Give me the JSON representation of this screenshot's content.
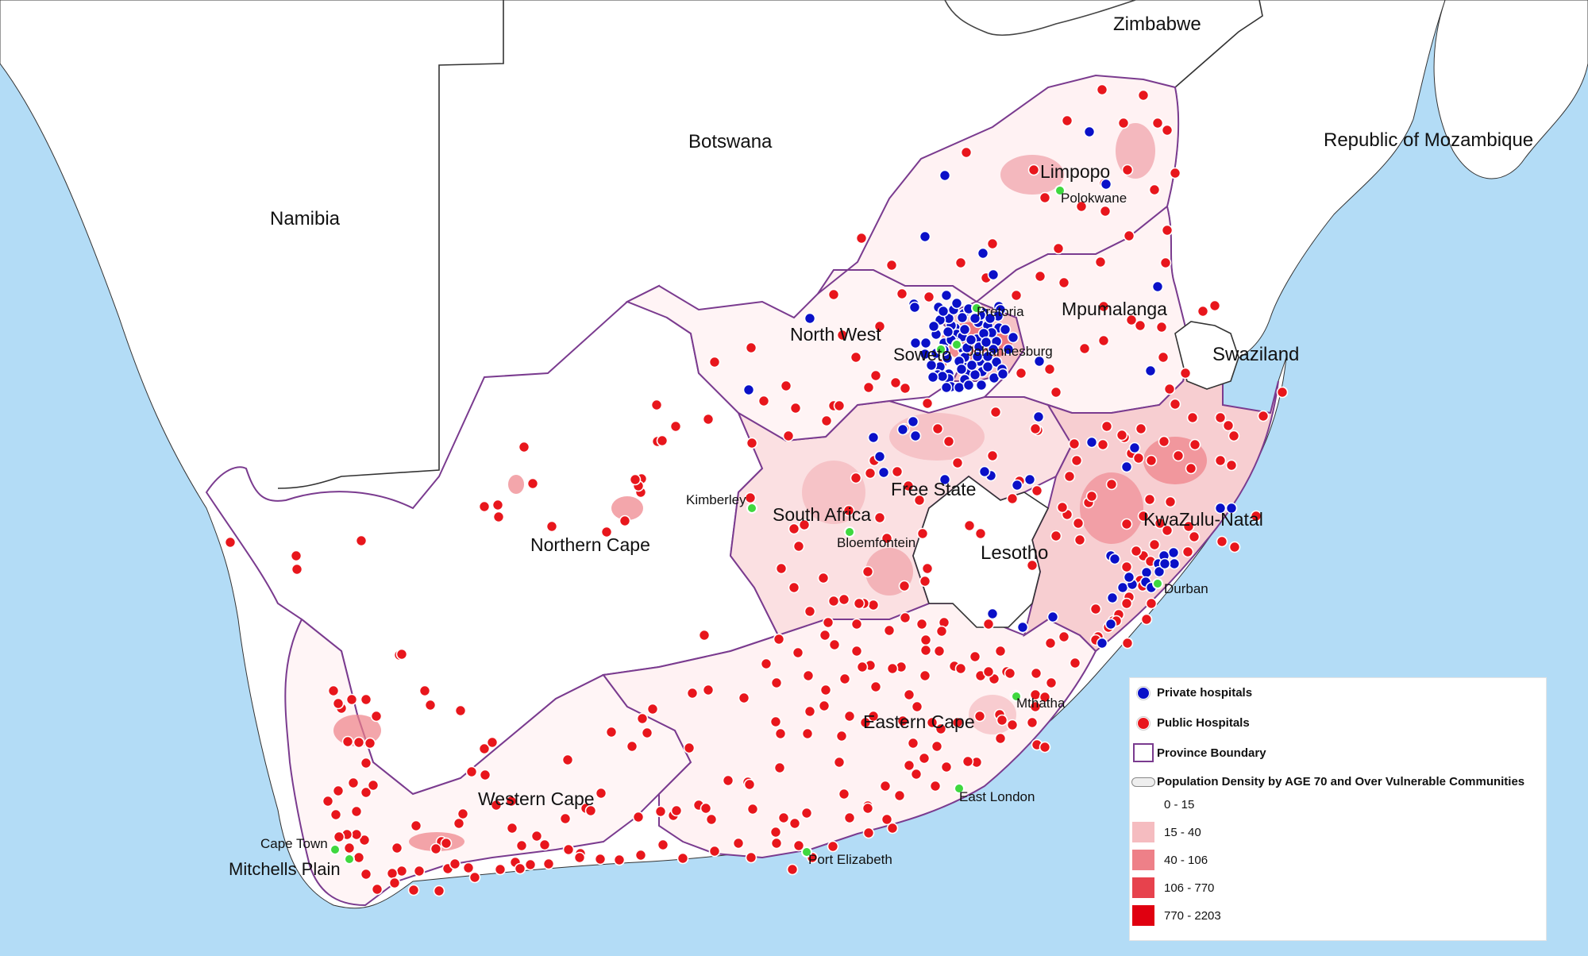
{
  "colors": {
    "ocean": "#b3dcf6",
    "land": "#ffffff",
    "province_boundary": "#7a3b8f",
    "private_hospital": "#0a10c8",
    "public_hospital": "#e8161c",
    "city_marker": "#3fd83f"
  },
  "countries": [
    {
      "name": "Namibia"
    },
    {
      "name": "Botswana"
    },
    {
      "name": "Zimbabwe"
    },
    {
      "name": "Republic of Mozambique"
    },
    {
      "name": "Swaziland"
    },
    {
      "name": "Lesotho"
    },
    {
      "name": "South Africa"
    }
  ],
  "provinces": [
    {
      "name": "Limpopo"
    },
    {
      "name": "Mpumalanga"
    },
    {
      "name": "North West"
    },
    {
      "name": "Free State"
    },
    {
      "name": "KwaZulu-Natal"
    },
    {
      "name": "Northern Cape"
    },
    {
      "name": "Eastern Cape"
    },
    {
      "name": "Western Cape"
    }
  ],
  "cities": [
    {
      "name": "Polokwane"
    },
    {
      "name": "Pretoria"
    },
    {
      "name": "Johannesburg"
    },
    {
      "name": "Soweto"
    },
    {
      "name": "Kimberley"
    },
    {
      "name": "Bloemfontein"
    },
    {
      "name": "Durban"
    },
    {
      "name": "Mthatha"
    },
    {
      "name": "East London"
    },
    {
      "name": "Port Elizabeth"
    },
    {
      "name": "Cape Town"
    },
    {
      "name": "Mitchells Plain"
    }
  ],
  "legend": {
    "private_label": "Private hospitals",
    "public_label": "Public Hospitals",
    "boundary_label": "Province Boundary",
    "density_label": "Population Density by AGE 70 and Over Vulnerable Communities",
    "classes": [
      {
        "label": "0 - 15",
        "color": "#ffffff"
      },
      {
        "label": "15 - 40",
        "color": "#f5bcc0"
      },
      {
        "label": "40 - 106",
        "color": "#ee8088"
      },
      {
        "label": "106 - 770",
        "color": "#e7424d"
      },
      {
        "label": "770 - 2203",
        "color": "#e00010"
      }
    ]
  }
}
